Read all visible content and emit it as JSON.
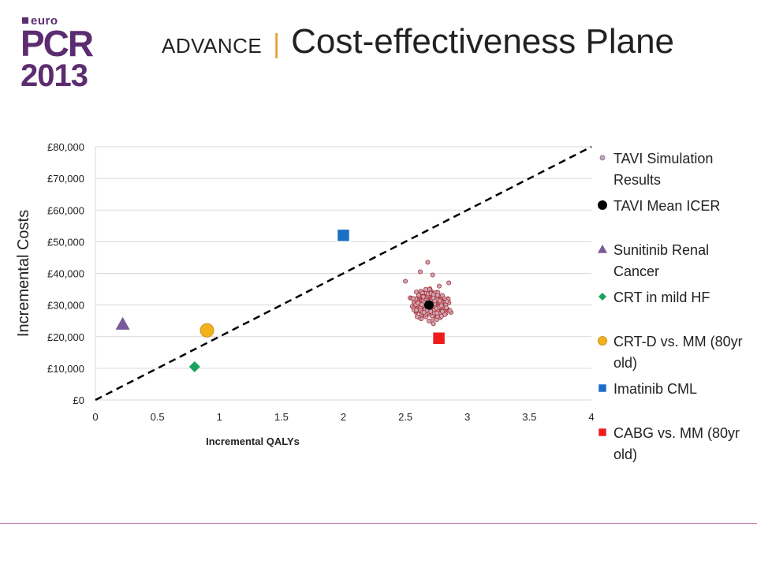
{
  "logo": {
    "euro": "euro",
    "pcr": "PCR",
    "year": "2013"
  },
  "slide": {
    "title_small": "ADVANCE",
    "separator": "|",
    "title_big": "Cost-effectiveness Plane"
  },
  "colors": {
    "brand": "#5b2c6f",
    "separator": "#e8a03a",
    "tavi_sim_fill": "#c9a9b5",
    "tavi_sim_stroke": "#b0303a",
    "tavi_mean": "#000000",
    "sunitinib": "#7a5a9a",
    "crt_mild_hf": "#1aa35a",
    "crt_d": "#f2b21c",
    "imatinib": "#1a6fc4",
    "cabg": "#ee1c1c",
    "threshold_line": "#000000"
  },
  "chart_data": {
    "type": "scatter",
    "xlabel": "Incremental QALYs",
    "ylabel": "Incremental Costs",
    "xlim": [
      0,
      4
    ],
    "ylim": [
      0,
      80000
    ],
    "x_ticks": [
      0,
      0.5,
      1,
      1.5,
      2,
      2.5,
      3,
      3.5,
      4
    ],
    "x_tick_labels": [
      "0",
      "0.5",
      "1",
      "1.5",
      "2",
      "2.5",
      "3",
      "3.5",
      "4"
    ],
    "y_ticks": [
      0,
      10000,
      20000,
      30000,
      40000,
      50000,
      60000,
      70000,
      80000
    ],
    "y_tick_labels": [
      "£0",
      "£10,000",
      "£20,000",
      "£30,000",
      "£40,000",
      "£50,000",
      "£60,000",
      "£70,000",
      "£80,000"
    ],
    "grid": "horizontal",
    "legend_position": "right",
    "threshold_line": {
      "style": "dashed",
      "points": [
        [
          0,
          0
        ],
        [
          4,
          80000
        ]
      ]
    },
    "simulation_cloud": {
      "name": "TAVI Simulation Results",
      "center": [
        2.7,
        30000
      ],
      "x_range": [
        2.4,
        2.9
      ],
      "y_range": [
        23000,
        43500
      ]
    },
    "series": [
      {
        "name": "TAVI Simulation Results",
        "marker": "small-circle",
        "points": "see simulation_cloud"
      },
      {
        "name": "TAVI Mean ICER",
        "marker": "circle",
        "points": [
          [
            2.69,
            30000
          ]
        ]
      },
      {
        "name": "Sunitinib Renal Cancer",
        "marker": "triangle",
        "points": [
          [
            0.22,
            24000
          ]
        ]
      },
      {
        "name": "CRT in mild HF",
        "marker": "diamond",
        "points": [
          [
            0.8,
            10500
          ]
        ]
      },
      {
        "name": "CRT-D vs. MM (80yr old)",
        "marker": "circle",
        "points": [
          [
            0.9,
            22000
          ]
        ]
      },
      {
        "name": "Imatinib CML",
        "marker": "square",
        "points": [
          [
            2.0,
            52000
          ]
        ]
      },
      {
        "name": "CABG vs. MM (80yr old)",
        "marker": "square",
        "points": [
          [
            2.77,
            19500
          ]
        ]
      }
    ]
  }
}
